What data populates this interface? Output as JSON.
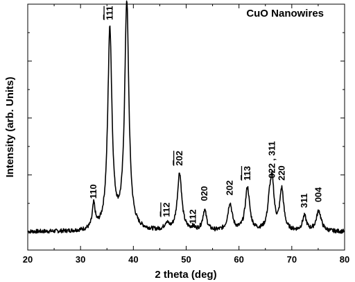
{
  "chart_data": {
    "type": "line",
    "title": "CuO Nanowires",
    "xlabel": "2 theta (deg)",
    "ylabel": "Intensity (arb. Units)",
    "xlim": [
      20,
      80
    ],
    "ylim": [
      -0.08,
      1.0
    ],
    "grid": false,
    "legend": "none",
    "x_ticks": [
      20,
      30,
      40,
      50,
      60,
      70,
      80
    ],
    "x_tick_labels": [
      "20",
      "30",
      "40",
      "50",
      "60",
      "70",
      "80"
    ],
    "y_tick_labels": [],
    "baseline": 0.0,
    "series": [
      {
        "peaks": [
          {
            "x": 32.5,
            "height": 0.105,
            "width": 0.32
          },
          {
            "x": 35.55,
            "height": 0.88,
            "width": 0.48
          },
          {
            "x": 38.75,
            "height": 1.0,
            "width": 0.48
          },
          {
            "x": 46.3,
            "height": 0.03,
            "width": 0.45
          },
          {
            "x": 48.75,
            "height": 0.255,
            "width": 0.5
          },
          {
            "x": 51.3,
            "height": 0.012,
            "width": 0.4
          },
          {
            "x": 53.5,
            "height": 0.09,
            "width": 0.45
          },
          {
            "x": 58.3,
            "height": 0.12,
            "width": 0.5
          },
          {
            "x": 61.6,
            "height": 0.19,
            "width": 0.5
          },
          {
            "x": 65.8,
            "height": 0.11,
            "width": 0.45
          },
          {
            "x": 66.3,
            "height": 0.19,
            "width": 0.42
          },
          {
            "x": 68.1,
            "height": 0.18,
            "width": 0.45
          },
          {
            "x": 72.4,
            "height": 0.065,
            "width": 0.45
          },
          {
            "x": 75.1,
            "height": 0.09,
            "width": 0.55
          }
        ]
      }
    ],
    "peak_labels": [
      {
        "text": "110",
        "x": 32.5,
        "y": 0.145,
        "bar": false
      },
      {
        "text": "111",
        "x": 35.55,
        "y": 0.93,
        "bar": true
      },
      {
        "text": "111",
        "x": 38.75,
        "y": 1.045,
        "bar": false
      },
      {
        "text": "112",
        "x": 46.3,
        "y": 0.065,
        "bar": true
      },
      {
        "text": "202",
        "x": 48.75,
        "y": 0.29,
        "bar": true
      },
      {
        "text": "112",
        "x": 51.3,
        "y": 0.035,
        "bar": false
      },
      {
        "text": "020",
        "x": 53.5,
        "y": 0.135,
        "bar": false
      },
      {
        "text": "202",
        "x": 58.3,
        "y": 0.16,
        "bar": false
      },
      {
        "text": "113",
        "x": 61.6,
        "y": 0.225,
        "bar": true
      },
      {
        "text": "022 , 311",
        "x": 66.3,
        "y": 0.235,
        "bar": false
      },
      {
        "text": "220",
        "x": 68.1,
        "y": 0.225,
        "bar": false
      },
      {
        "text": "311",
        "x": 72.4,
        "y": 0.105,
        "bar": false
      },
      {
        "text": "004",
        "x": 75.1,
        "y": 0.13,
        "bar": false
      }
    ]
  }
}
